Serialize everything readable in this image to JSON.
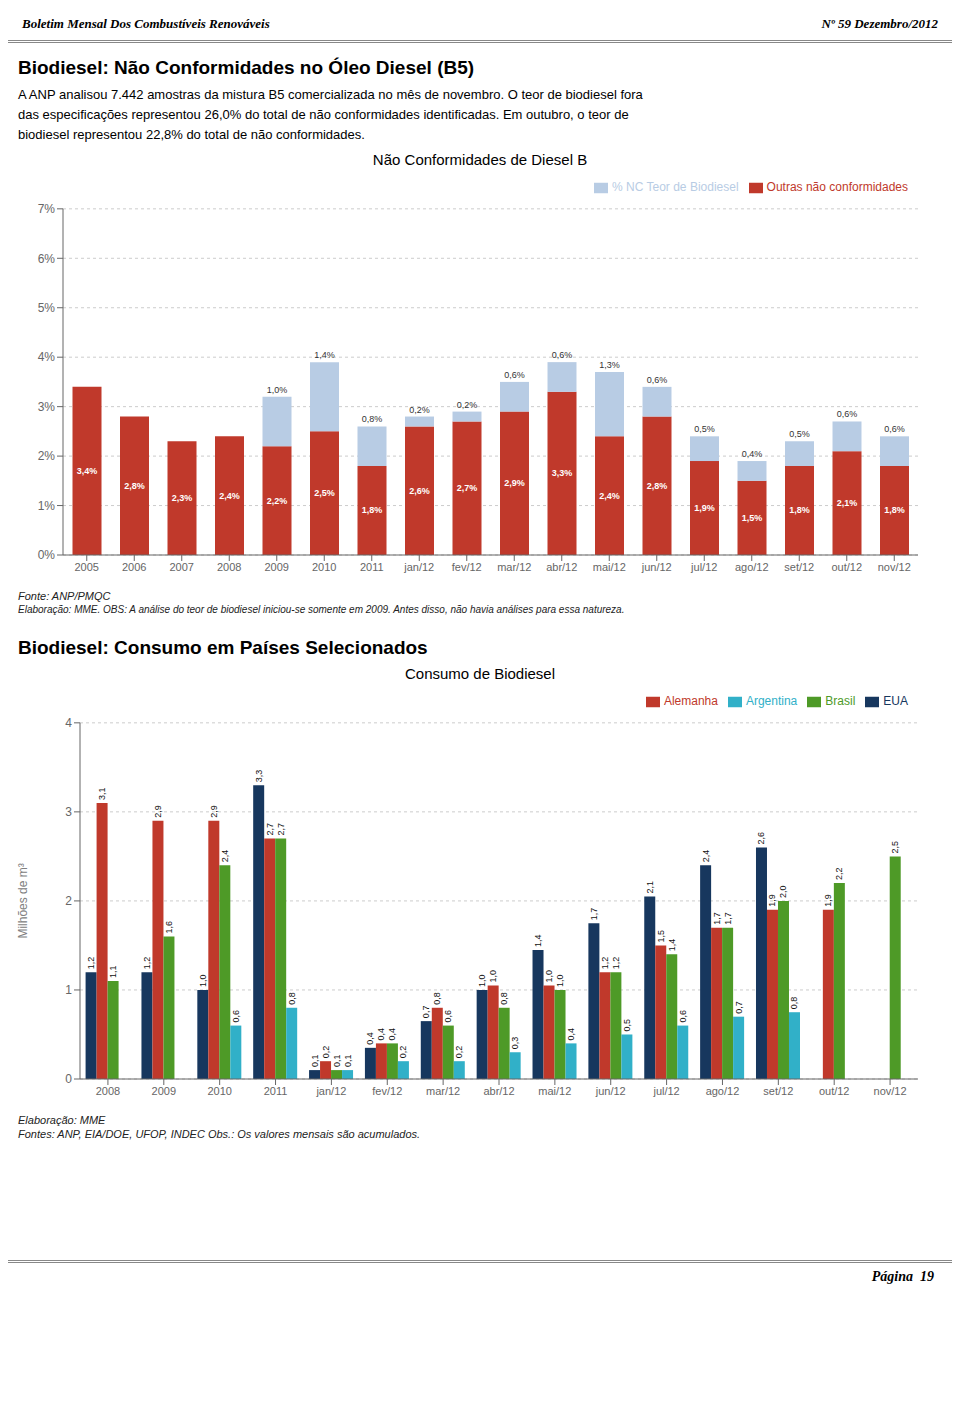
{
  "chart_data": [
    {
      "type": "bar",
      "title": "Não Conformidades de Diesel B",
      "stacked": true,
      "grid": true,
      "legend": "upper right",
      "data_labels": true,
      "categories": [
        "2005",
        "2006",
        "2007",
        "2008",
        "2009",
        "2010",
        "2011",
        "jan/12",
        "fev/12",
        "mar/12",
        "abr/12",
        "mai/12",
        "jun/12",
        "jul/12",
        "ago/12",
        "set/12",
        "out/12",
        "nov/12"
      ],
      "series": [
        {
          "name": "Outras não conformidades",
          "color": "#c0392b",
          "values": [
            3.4,
            2.8,
            2.3,
            2.4,
            2.2,
            2.5,
            1.8,
            2.6,
            2.7,
            2.9,
            3.3,
            2.4,
            2.8,
            1.9,
            1.5,
            1.8,
            2.1,
            1.8
          ],
          "value_labels": [
            "3,4%",
            "2,8%",
            "2,3%",
            "2,4%",
            "2,2%",
            "2,5%",
            "1,8%",
            "2,6%",
            "2,7%",
            "2,9%",
            "3,3%",
            "2,4%",
            "2,8%",
            "1,9%",
            "1,5%",
            "1,8%",
            "2,1%",
            "1,8%"
          ]
        },
        {
          "name": "% NC Teor de Biodiesel",
          "color": "#b8cce4",
          "values": [
            0.0,
            0.0,
            0.0,
            0.0,
            1.0,
            1.4,
            0.8,
            0.2,
            0.2,
            0.6,
            0.6,
            1.3,
            0.6,
            0.5,
            0.4,
            0.5,
            0.6,
            0.6
          ],
          "value_labels": [
            null,
            null,
            null,
            null,
            "1,0%",
            "1,4%",
            "0,8%",
            "0,2%",
            "0,2%",
            "0,6%",
            "0,6%",
            "1,3%",
            "0,6%",
            "0,5%",
            "0,4%",
            "0,5%",
            "0,6%",
            "0,6%"
          ]
        }
      ],
      "ylim": [
        0,
        7
      ],
      "yticks": [
        {
          "value": 0,
          "label": "0%"
        },
        {
          "value": 1,
          "label": "1%"
        },
        {
          "value": 2,
          "label": "2%"
        },
        {
          "value": 3,
          "label": "3%"
        },
        {
          "value": 4,
          "label": "4%"
        },
        {
          "value": 5,
          "label": "5%"
        },
        {
          "value": 6,
          "label": "6%"
        },
        {
          "value": 7,
          "label": "7%"
        }
      ],
      "annotations": [
        "Boletim Mensal Dos Combustíveis Renováveis",
        "Nº 59 Dezembro/2012",
        "Biodiesel: Não Conformidades no Óleo Diesel (B5)",
        "A ANP analisou 7.442 amostras da mistura B5 comercializada no mês de novembro. O teor de biodiesel fora\ndas especificações representou 26,0% do total de não conformidades identificadas. Em outubro, o teor de\nbiodiesel representou 22,8% do total de não conformidades.",
        "Fonte: ANP/PMQC",
        "Elaboração: MME. OBS: A análise do teor de biodiesel iniciou-se somente em 2009. Antes disso, não havia análises para essa natureza."
      ]
    },
    {
      "type": "bar",
      "title": "Consumo de Biodiesel",
      "y_label": "Milhões de m³",
      "grid": true,
      "legend": "upper right",
      "data_labels": true,
      "categories": [
        "2008",
        "2009",
        "2010",
        "2011",
        "jan/12",
        "fev/12",
        "mar/12",
        "abr/12",
        "mai/12",
        "jun/12",
        "jul/12",
        "ago/12",
        "set/12",
        "out/12",
        "nov/12"
      ],
      "series": [
        {
          "name": "EUA",
          "color": "#17375e",
          "values": [
            1.2,
            1.2,
            1.0,
            3.3,
            0.1,
            0.35,
            0.65,
            1.0,
            1.45,
            1.75,
            2.05,
            2.4,
            2.6,
            null,
            null
          ],
          "value_labels": [
            "1,2",
            "1,2",
            "1,0",
            "3,3",
            "0,1",
            "0,4",
            "0,7",
            "1,0",
            "1,4",
            "1,7",
            "2,1",
            "2,4",
            "2,6",
            null,
            null
          ]
        },
        {
          "name": "Alemanha",
          "color": "#c0392b",
          "values": [
            3.1,
            2.9,
            2.9,
            2.7,
            0.2,
            0.4,
            0.8,
            1.05,
            1.05,
            1.2,
            1.5,
            1.7,
            1.9,
            1.9,
            null
          ],
          "value_labels": [
            "3,1",
            "2,9",
            "2,9",
            "2,7",
            "0,2",
            "0,4",
            "0,8",
            "1,0",
            "1,0",
            "1,2",
            "1,5",
            "1,7",
            "1,9",
            "1,9",
            null
          ]
        },
        {
          "name": "Brasil",
          "color": "#4e9a27",
          "values": [
            1.1,
            1.6,
            2.4,
            2.7,
            0.1,
            0.4,
            0.6,
            0.8,
            1.0,
            1.2,
            1.4,
            1.7,
            2.0,
            2.2,
            2.5
          ],
          "value_labels": [
            "1,1",
            "1,6",
            "2,4",
            "2,7",
            "0,1",
            "0,4",
            "0,6",
            "0,8",
            "1,0",
            "1,2",
            "1,4",
            "1,7",
            "2,0",
            "2,2",
            "2,5"
          ]
        },
        {
          "name": "Argentina",
          "color": "#31b0c8",
          "values": [
            null,
            null,
            0.6,
            0.8,
            0.1,
            0.2,
            0.2,
            0.3,
            0.4,
            0.5,
            0.6,
            0.7,
            0.75,
            null,
            null
          ],
          "value_labels": [
            null,
            null,
            "0,6",
            "0,8",
            "0,1",
            "0,2",
            "0,2",
            "0,3",
            "0,4",
            "0,5",
            "0,6",
            "0,7",
            "0,8",
            null,
            null
          ]
        }
      ],
      "ylim": [
        0,
        4
      ],
      "yticks": [
        0,
        1,
        2,
        3,
        4
      ],
      "annotations": [
        "Biodiesel: Consumo em Países Selecionados",
        "Elaboração: MME",
        "Fontes: ANP, EIA/DOE, UFOP, INDEC    Obs.: Os valores mensais são acumulados.",
        "Página  19"
      ]
    }
  ]
}
